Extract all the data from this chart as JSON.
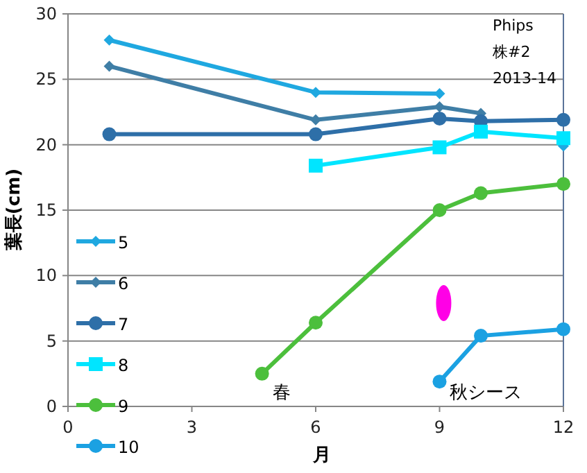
{
  "chart_data": {
    "type": "line",
    "xlabel": "月",
    "ylabel": "葉長(cm)",
    "xlim": [
      0,
      12
    ],
    "ylim": [
      0,
      30
    ],
    "xticks": [
      0,
      3,
      6,
      9,
      12
    ],
    "yticks": [
      0,
      5,
      10,
      15,
      20,
      25,
      30
    ],
    "grid": "y",
    "legend": "left",
    "annotations": [
      "Phips",
      "株#2",
      "2013-14",
      "春",
      "秋シース"
    ],
    "series": [
      {
        "name": "5",
        "color": "#1fa8e0",
        "marker": "diamond",
        "x": [
          1,
          6,
          9
        ],
        "values": [
          28,
          24,
          23.9
        ]
      },
      {
        "color": "#1fa8e0",
        "marker": "diamond",
        "x": [
          12
        ],
        "values": [
          19.9
        ]
      },
      {
        "name": "6",
        "color": "#3f7ea6",
        "marker": "diamond",
        "x": [
          1,
          6,
          9,
          10
        ],
        "values": [
          26,
          21.9,
          22.9,
          22.4
        ]
      },
      {
        "name": "7",
        "color": "#2e6fa8",
        "marker": "circle",
        "x": [
          1,
          6,
          9,
          10,
          12
        ],
        "values": [
          20.8,
          20.8,
          22,
          21.8,
          21.9
        ]
      },
      {
        "name": "8",
        "color": "#00e5ff",
        "marker": "square",
        "x": [
          6,
          9,
          10,
          12
        ],
        "values": [
          18.4,
          19.8,
          21,
          20.5
        ]
      },
      {
        "name": "9",
        "color": "#4cbf3c",
        "marker": "circle",
        "x": [
          4.7,
          6,
          9,
          10,
          12
        ],
        "values": [
          2.5,
          6.4,
          15,
          16.3,
          17
        ]
      },
      {
        "name": "10",
        "color": "#1ba1e2",
        "marker": "circle",
        "x": [
          9,
          10,
          12
        ],
        "values": [
          1.9,
          5.4,
          5.9
        ]
      }
    ]
  }
}
